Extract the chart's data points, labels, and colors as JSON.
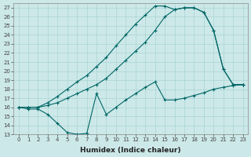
{
  "xlabel": "Humidex (Indice chaleur)",
  "bg_color": "#cce8e8",
  "line_color": "#006666",
  "grid_color": "#aad4d4",
  "xlim": [
    -0.5,
    23.5
  ],
  "ylim": [
    13,
    27.5
  ],
  "yticks": [
    13,
    14,
    15,
    16,
    17,
    18,
    19,
    20,
    21,
    22,
    23,
    24,
    25,
    26,
    27
  ],
  "xticks": [
    0,
    1,
    2,
    3,
    4,
    5,
    6,
    7,
    8,
    9,
    10,
    11,
    12,
    13,
    14,
    15,
    16,
    17,
    18,
    19,
    20,
    21,
    22,
    23
  ],
  "line1_x": [
    0,
    1,
    2,
    3,
    4,
    5,
    6,
    7,
    8,
    9,
    10,
    11,
    12,
    13,
    14,
    15,
    16,
    17,
    18,
    19,
    20,
    21,
    22,
    23
  ],
  "line1_y": [
    16.0,
    15.8,
    15.8,
    15.2,
    14.2,
    13.2,
    13.0,
    13.1,
    17.5,
    15.2,
    16.0,
    16.8,
    17.5,
    18.2,
    18.8,
    16.8,
    16.8,
    17.0,
    17.3,
    17.6,
    18.0,
    18.2,
    18.4,
    18.5
  ],
  "line2_x": [
    0,
    1,
    2,
    3,
    4,
    5,
    6,
    7,
    8,
    9,
    10,
    11,
    12,
    13,
    14,
    15,
    16,
    17,
    18,
    19,
    20,
    21,
    22,
    23
  ],
  "line2_y": [
    16.0,
    16.0,
    16.0,
    16.2,
    16.5,
    17.0,
    17.5,
    18.0,
    18.5,
    19.2,
    20.2,
    21.2,
    22.2,
    23.2,
    24.5,
    26.0,
    26.8,
    27.0,
    27.0,
    26.5,
    24.5,
    20.2,
    18.5,
    18.5
  ],
  "line3_x": [
    0,
    1,
    2,
    3,
    4,
    5,
    6,
    7,
    8,
    9,
    10,
    11,
    12,
    13,
    14,
    15,
    16,
    17,
    18,
    19,
    20,
    21,
    22,
    23
  ],
  "line3_y": [
    16.0,
    16.0,
    16.0,
    16.5,
    17.2,
    18.0,
    18.8,
    19.5,
    20.5,
    21.5,
    22.8,
    24.0,
    25.2,
    26.2,
    27.2,
    27.2,
    26.8,
    27.0,
    27.0,
    26.5,
    24.5,
    20.2,
    18.5,
    18.5
  ]
}
